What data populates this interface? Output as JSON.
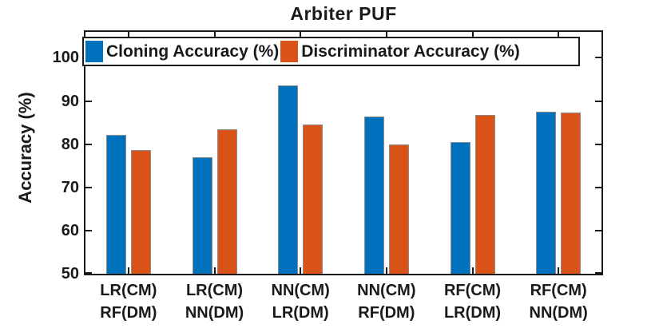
{
  "chart_data": {
    "type": "bar",
    "title": "Arbiter PUF",
    "xlabel": "",
    "ylabel": "Accuracy (%)",
    "ylim": [
      50,
      106
    ],
    "yticks": [
      50,
      60,
      70,
      80,
      90,
      100
    ],
    "ytick_labels": [
      "50",
      "60",
      "70",
      "80",
      "90",
      "100"
    ],
    "grid": false,
    "legend_position": "north-inside",
    "axis_color": "#1a1a1a",
    "categories": [
      {
        "line1": "LR(CM)",
        "line2": "RF(DM)"
      },
      {
        "line1": "LR(CM)",
        "line2": "NN(DM)"
      },
      {
        "line1": "NN(CM)",
        "line2": "LR(DM)"
      },
      {
        "line1": "NN(CM)",
        "line2": "RF(DM)"
      },
      {
        "line1": "RF(CM)",
        "line2": "LR(DM)"
      },
      {
        "line1": "RF(CM)",
        "line2": "NN(DM)"
      }
    ],
    "series": [
      {
        "name": "Cloning Accuracy (%)",
        "color": "#0072BD",
        "values": [
          82.2,
          77.0,
          93.6,
          86.4,
          80.5,
          87.5
        ]
      },
      {
        "name": "Discriminator Accuracy (%)",
        "color": "#D95319",
        "values": [
          78.6,
          83.4,
          84.6,
          80.0,
          86.8,
          87.3
        ]
      }
    ]
  }
}
